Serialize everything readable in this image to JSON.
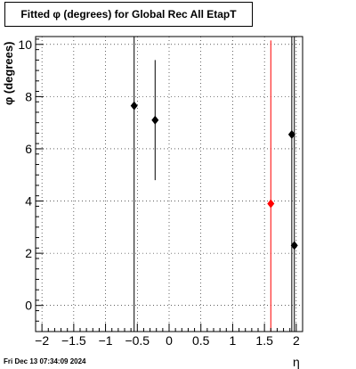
{
  "chart_data": {
    "type": "scatter",
    "title": "Fitted φ (degrees) for Global Rec All EtapT",
    "xlabel": "η",
    "ylabel": "φ (degrees)",
    "xlim": [
      -2.1,
      2.1
    ],
    "ylim": [
      -1.0,
      10.3
    ],
    "x_ticks": [
      -2,
      -1.5,
      -1,
      -0.5,
      0,
      0.5,
      1,
      1.5,
      2
    ],
    "x_tick_labels": [
      "−2",
      "−1.5",
      "−1",
      "−0.5",
      "0",
      "0.5",
      "1",
      "1.5",
      "2"
    ],
    "y_ticks": [
      0,
      2,
      4,
      6,
      8,
      10
    ],
    "y_tick_labels": [
      "0",
      "2",
      "4",
      "6",
      "8",
      "10"
    ],
    "grid": true,
    "points": [
      {
        "x": -0.55,
        "y": 7.65,
        "yerr_low": 11.5,
        "yerr_high": 2.65,
        "color": "#000000"
      },
      {
        "x": -0.22,
        "y": 7.1,
        "yerr_low": 2.3,
        "yerr_high": 2.3,
        "color": "#000000"
      },
      {
        "x": 1.6,
        "y": 3.9,
        "yerr_low": 4.9,
        "yerr_high": 6.25,
        "color": "#ff0000"
      },
      {
        "x": 1.93,
        "y": 6.55,
        "yerr_low": 7.55,
        "yerr_high": 3.75,
        "color": "#000000"
      },
      {
        "x": 1.97,
        "y": 2.3,
        "yerr_low": 3.3,
        "yerr_high": 8.0,
        "color": "#000000"
      }
    ]
  },
  "footer": {
    "timestamp": "Fri Dec 13 07:34:09 2024"
  }
}
